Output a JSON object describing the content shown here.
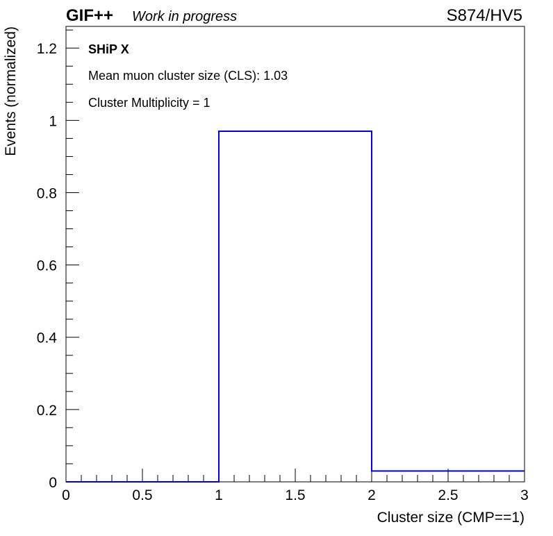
{
  "header": {
    "experiment": "GIF++",
    "status": "Work in progress",
    "run_label": "S874/HV5"
  },
  "annotations": {
    "detector": "SHiP X",
    "mean_cls": "Mean muon cluster size (CLS): 1.03",
    "multiplicity": "Cluster Multiplicity = 1"
  },
  "chart_data": {
    "type": "histogram",
    "xlabel": "Cluster size (CMP==1)",
    "ylabel": "Events (normalized)",
    "xlim": [
      0,
      3
    ],
    "ylim": [
      0,
      1.26
    ],
    "x_ticks": [
      0,
      0.5,
      1,
      1.5,
      2,
      2.5,
      3
    ],
    "x_tick_labels": [
      "0",
      "0.5",
      "1",
      "1.5",
      "2",
      "2.5",
      "3"
    ],
    "y_ticks": [
      0,
      0.2,
      0.4,
      0.6,
      0.8,
      1,
      1.2
    ],
    "y_tick_labels": [
      "0",
      "0.2",
      "0.4",
      "0.6",
      "0.8",
      "1",
      "1.2"
    ],
    "bins": [
      {
        "x_low": 0,
        "x_high": 1,
        "value": 0.0
      },
      {
        "x_low": 1,
        "x_high": 2,
        "value": 0.97
      },
      {
        "x_low": 2,
        "x_high": 3,
        "value": 0.03
      }
    ],
    "line_color": "#0000cc",
    "grid": false
  }
}
